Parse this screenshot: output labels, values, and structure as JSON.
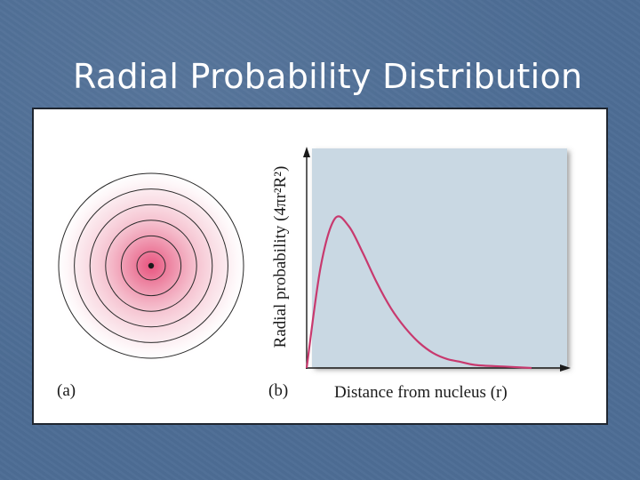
{
  "slide": {
    "title": "Radial Probability Distribution"
  },
  "figure": {
    "panel_a": {
      "label": "(a)",
      "ring_count": 6
    },
    "panel_b": {
      "label": "(b)",
      "y_axis_label": "Radial probability (4πr²R²)",
      "x_axis_label": "Distance from nucleus (r)"
    }
  },
  "chart_data": {
    "type": "line",
    "title": "",
    "xlabel": "Distance from nucleus (r)",
    "ylabel": "Radial probability (4πr²R²)",
    "x": [
      0,
      0.5,
      1,
      1.5,
      2,
      2.5,
      3,
      3.5,
      4,
      4.5,
      5,
      5.5,
      6,
      7,
      8
    ],
    "series": [
      {
        "values": [
          0,
          0.68,
          1.0,
          0.95,
          0.77,
          0.57,
          0.4,
          0.27,
          0.17,
          0.1,
          0.06,
          0.04,
          0.02,
          0.01,
          0.0
        ]
      }
    ],
    "xlim": [
      0,
      8
    ],
    "ylim": [
      0,
      1.4
    ],
    "grid": false,
    "colors": {
      "curve": "#c8396e",
      "plot_background": "#c9d8e3",
      "density_center": "#e8547f"
    }
  }
}
